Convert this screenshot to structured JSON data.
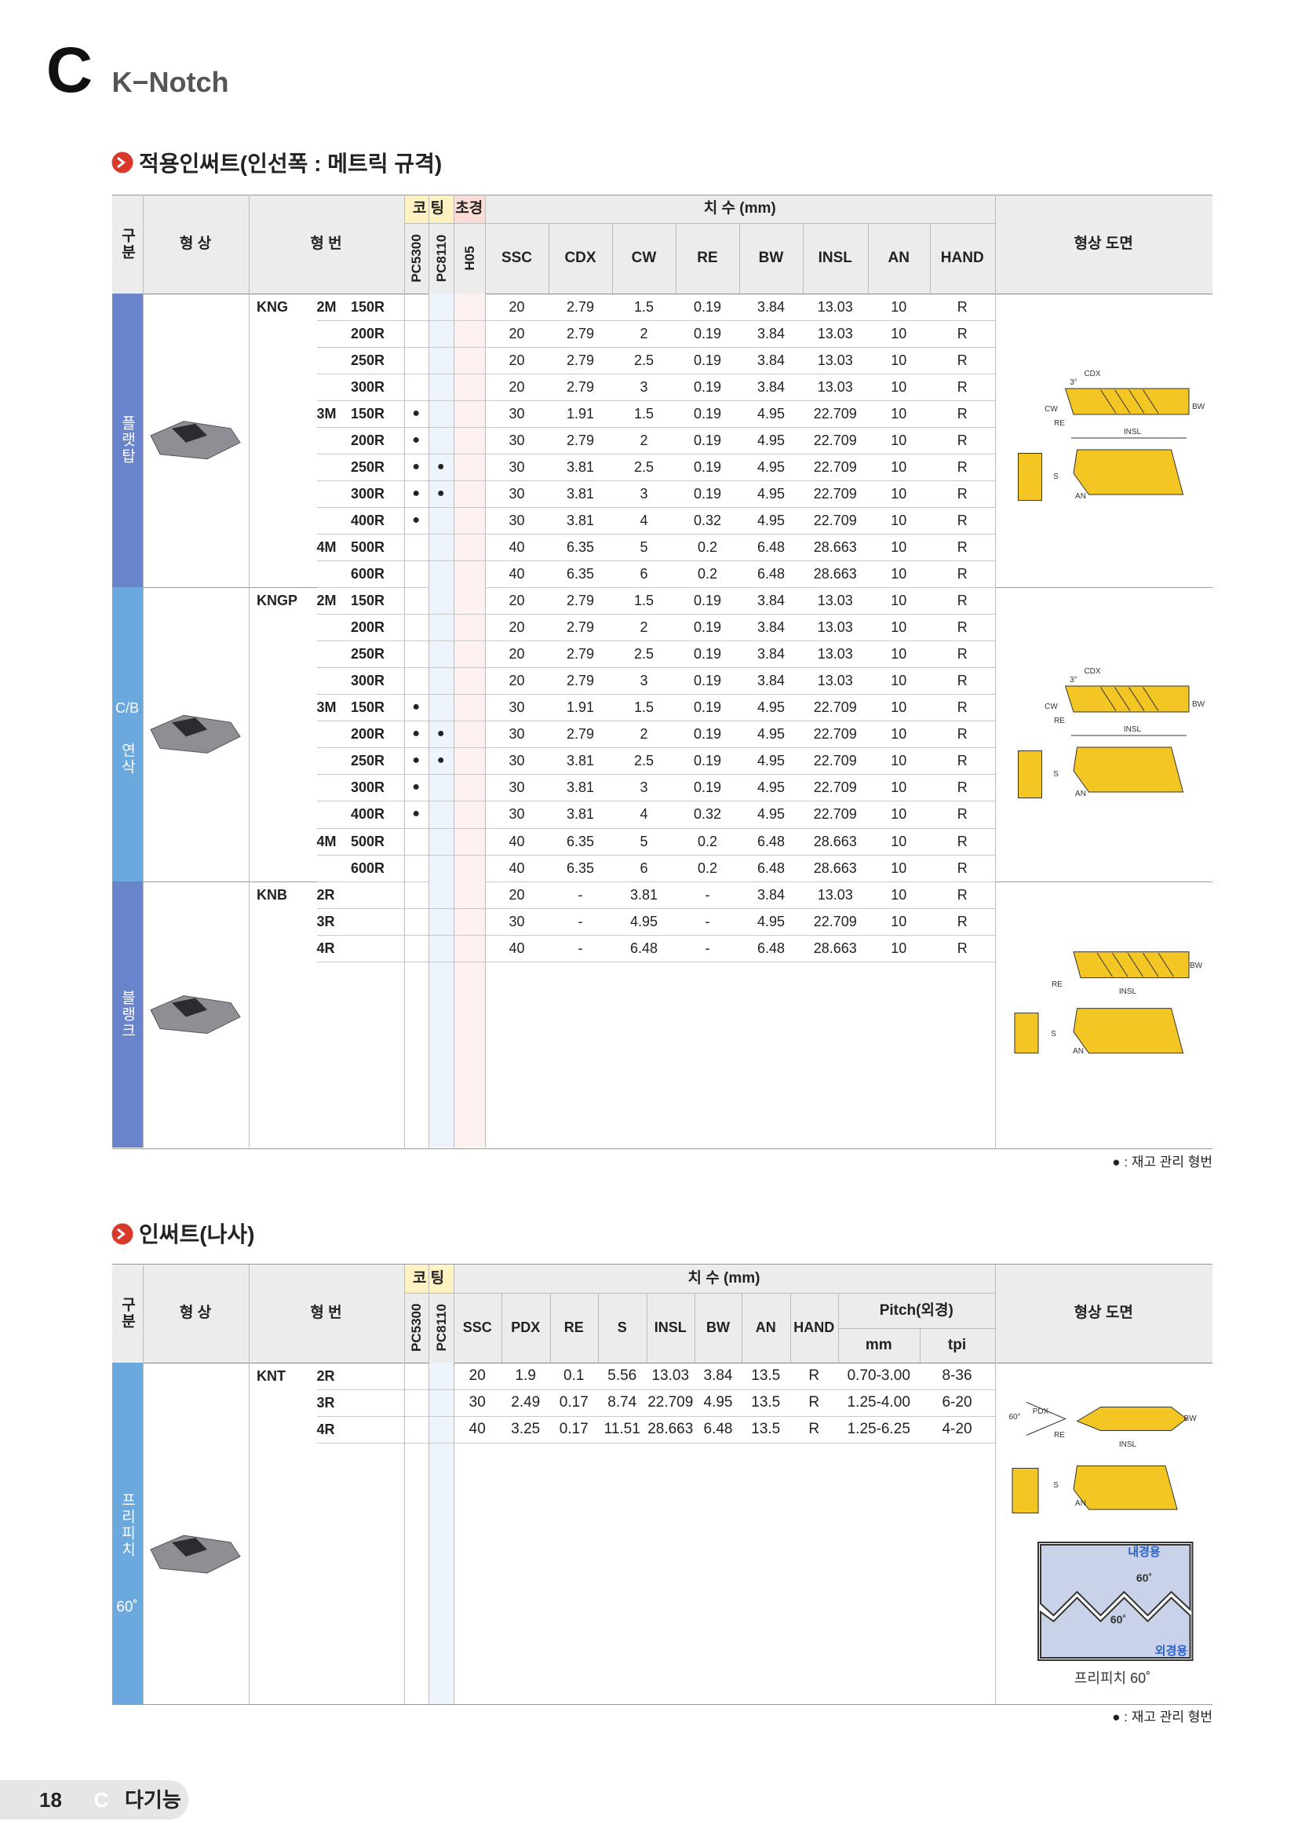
{
  "header": {
    "letter": "C",
    "title": "K−Notch"
  },
  "section1": {
    "title": "적용인써트(인선폭 : 메트릭 규격)",
    "headers": {
      "group": "구분",
      "shape": "형 상",
      "model": "형 번",
      "coating": "코 팅",
      "carbide": "초경",
      "coatings": [
        "PC5300",
        "PC8110",
        "H05"
      ],
      "dimension": "치 수 (mm)",
      "dims": [
        "SSC",
        "CDX",
        "CW",
        "RE",
        "BW",
        "INSL",
        "AN",
        "HAND"
      ],
      "drawing": "형상 도면"
    },
    "groups": [
      {
        "label": [
          "플랫탑"
        ],
        "diagram_labels": [
          "CDX",
          "3°",
          "CW",
          "RE",
          "BW",
          "INSL",
          "S",
          "AN"
        ],
        "rows": [
          [
            "KNG",
            "2M",
            "150R",
            null,
            null,
            null,
            "20",
            "2.79",
            "1.5",
            "0.19",
            "3.84",
            "13.03",
            "10",
            "R"
          ],
          [
            null,
            null,
            "200R",
            null,
            null,
            null,
            "20",
            "2.79",
            "2",
            "0.19",
            "3.84",
            "13.03",
            "10",
            "R"
          ],
          [
            null,
            null,
            "250R",
            null,
            null,
            null,
            "20",
            "2.79",
            "2.5",
            "0.19",
            "3.84",
            "13.03",
            "10",
            "R"
          ],
          [
            null,
            null,
            "300R",
            null,
            null,
            null,
            "20",
            "2.79",
            "3",
            "0.19",
            "3.84",
            "13.03",
            "10",
            "R"
          ],
          [
            null,
            "3M",
            "150R",
            "●",
            null,
            null,
            "30",
            "1.91",
            "1.5",
            "0.19",
            "4.95",
            "22.709",
            "10",
            "R"
          ],
          [
            null,
            null,
            "200R",
            "●",
            null,
            null,
            "30",
            "2.79",
            "2",
            "0.19",
            "4.95",
            "22.709",
            "10",
            "R"
          ],
          [
            null,
            null,
            "250R",
            "●",
            "●",
            null,
            "30",
            "3.81",
            "2.5",
            "0.19",
            "4.95",
            "22.709",
            "10",
            "R"
          ],
          [
            null,
            null,
            "300R",
            "●",
            "●",
            null,
            "30",
            "3.81",
            "3",
            "0.19",
            "4.95",
            "22.709",
            "10",
            "R"
          ],
          [
            null,
            null,
            "400R",
            "●",
            null,
            null,
            "30",
            "3.81",
            "4",
            "0.32",
            "4.95",
            "22.709",
            "10",
            "R"
          ],
          [
            null,
            "4M",
            "500R",
            null,
            null,
            null,
            "40",
            "6.35",
            "5",
            "0.2",
            "6.48",
            "28.663",
            "10",
            "R"
          ],
          [
            null,
            null,
            "600R",
            null,
            null,
            null,
            "40",
            "6.35",
            "6",
            "0.2",
            "6.48",
            "28.663",
            "10",
            "R"
          ]
        ]
      },
      {
        "label": [
          "C/B",
          "연삭"
        ],
        "diagram_labels": [
          "CDX",
          "3°",
          "CW",
          "RE",
          "BW",
          "INSL",
          "S",
          "AN"
        ],
        "rows": [
          [
            "KNGP",
            "2M",
            "150R",
            null,
            null,
            null,
            "20",
            "2.79",
            "1.5",
            "0.19",
            "3.84",
            "13.03",
            "10",
            "R"
          ],
          [
            null,
            null,
            "200R",
            null,
            null,
            null,
            "20",
            "2.79",
            "2",
            "0.19",
            "3.84",
            "13.03",
            "10",
            "R"
          ],
          [
            null,
            null,
            "250R",
            null,
            null,
            null,
            "20",
            "2.79",
            "2.5",
            "0.19",
            "3.84",
            "13.03",
            "10",
            "R"
          ],
          [
            null,
            null,
            "300R",
            null,
            null,
            null,
            "20",
            "2.79",
            "3",
            "0.19",
            "3.84",
            "13.03",
            "10",
            "R"
          ],
          [
            null,
            "3M",
            "150R",
            "●",
            null,
            null,
            "30",
            "1.91",
            "1.5",
            "0.19",
            "4.95",
            "22.709",
            "10",
            "R"
          ],
          [
            null,
            null,
            "200R",
            "●",
            "●",
            null,
            "30",
            "2.79",
            "2",
            "0.19",
            "4.95",
            "22.709",
            "10",
            "R"
          ],
          [
            null,
            null,
            "250R",
            "●",
            "●",
            null,
            "30",
            "3.81",
            "2.5",
            "0.19",
            "4.95",
            "22.709",
            "10",
            "R"
          ],
          [
            null,
            null,
            "300R",
            "●",
            null,
            null,
            "30",
            "3.81",
            "3",
            "0.19",
            "4.95",
            "22.709",
            "10",
            "R"
          ],
          [
            null,
            null,
            "400R",
            "●",
            null,
            null,
            "30",
            "3.81",
            "4",
            "0.32",
            "4.95",
            "22.709",
            "10",
            "R"
          ],
          [
            null,
            "4M",
            "500R",
            null,
            null,
            null,
            "40",
            "6.35",
            "5",
            "0.2",
            "6.48",
            "28.663",
            "10",
            "R"
          ],
          [
            null,
            null,
            "600R",
            null,
            null,
            null,
            "40",
            "6.35",
            "6",
            "0.2",
            "6.48",
            "28.663",
            "10",
            "R"
          ]
        ]
      },
      {
        "label": [
          "블랭크"
        ],
        "diagram_labels": [
          "BW",
          "RE",
          "INSL",
          "S",
          "AN"
        ],
        "rows": [
          [
            "KNB",
            "2R",
            null,
            null,
            null,
            null,
            "20",
            "-",
            "3.81",
            "-",
            "3.84",
            "13.03",
            "10",
            "R"
          ],
          [
            null,
            "3R",
            null,
            null,
            null,
            null,
            "30",
            "-",
            "4.95",
            "-",
            "4.95",
            "22.709",
            "10",
            "R"
          ],
          [
            null,
            "4R",
            null,
            null,
            null,
            null,
            "40",
            "-",
            "6.48",
            "-",
            "6.48",
            "28.663",
            "10",
            "R"
          ]
        ]
      }
    ],
    "footnote": "● : 재고 관리 형번"
  },
  "section2": {
    "title": "인써트(나사)",
    "headers": {
      "group": "구분",
      "shape": "형 상",
      "model": "형 번",
      "coating": "코 팅",
      "coatings": [
        "PC5300",
        "PC8110"
      ],
      "dimension": "치 수 (mm)",
      "dims": [
        "SSC",
        "PDX",
        "RE",
        "S",
        "INSL",
        "BW",
        "AN",
        "HAND"
      ],
      "pitch": "Pitch(외경)",
      "pitch_units": [
        "mm",
        "tpi"
      ],
      "drawing": "형상 도면"
    },
    "groups": [
      {
        "label": [
          "프리피치",
          "60˚"
        ],
        "diagram_labels": [
          "PDX",
          "60°",
          "BW",
          "RE",
          "INSL",
          "S",
          "AN",
          "내경용",
          "60˚",
          "60˚",
          "외경용",
          "프리피치 60˚"
        ],
        "rows": [
          [
            "KNT",
            "2R",
            null,
            null,
            "20",
            "1.9",
            "0.1",
            "5.56",
            "13.03",
            "3.84",
            "13.5",
            "R",
            "0.70-3.00",
            "8-36"
          ],
          [
            null,
            "3R",
            null,
            null,
            "30",
            "2.49",
            "0.17",
            "8.74",
            "22.709",
            "4.95",
            "13.5",
            "R",
            "1.25-4.00",
            "6-20"
          ],
          [
            null,
            "4R",
            null,
            null,
            "40",
            "3.25",
            "0.17",
            "11.51",
            "28.663",
            "6.48",
            "13.5",
            "R",
            "1.25-6.25",
            "4-20"
          ]
        ]
      }
    ],
    "footnote": "● : 재고 관리 형번"
  },
  "footer": {
    "page": "18",
    "letter": "C",
    "section": "다기능"
  }
}
